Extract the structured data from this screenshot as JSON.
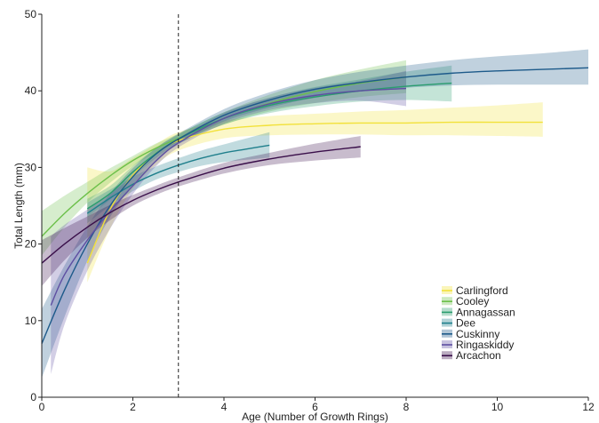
{
  "chart_data": {
    "type": "line",
    "xlabel": "Age (Number of Growth Rings)",
    "ylabel": "Total Length (mm)",
    "xlim": [
      0,
      12
    ],
    "ylim": [
      0,
      50
    ],
    "xticks": [
      "0",
      "2",
      "4",
      "6",
      "8",
      "10",
      "12"
    ],
    "yticks": [
      "0",
      "10",
      "20",
      "30",
      "40",
      "50"
    ],
    "reference_line": {
      "x": 3,
      "style": "dashed"
    },
    "legend_position": "bottom-right",
    "series": [
      {
        "name": "Carlingford",
        "color": "#f2e13a",
        "band_opacity": 0.28,
        "x": [
          1,
          1.5,
          2,
          2.5,
          3,
          4,
          5,
          6,
          7,
          8,
          9,
          10,
          11
        ],
        "y": [
          17.5,
          24.5,
          29.0,
          31.8,
          33.5,
          35.0,
          35.5,
          35.7,
          35.8,
          35.8,
          35.9,
          35.9,
          35.9
        ],
        "lower": [
          15.0,
          22.0,
          27.2,
          30.3,
          32.2,
          33.8,
          34.2,
          34.3,
          34.3,
          34.2,
          34.2,
          34.1,
          34.0
        ],
        "upper": [
          30.0,
          29.5,
          31.2,
          33.0,
          34.6,
          36.1,
          36.7,
          37.0,
          37.3,
          37.5,
          37.8,
          38.1,
          38.5
        ]
      },
      {
        "name": "Cooley",
        "color": "#6cc04a",
        "band_opacity": 0.28,
        "x": [
          0,
          0.5,
          1,
          1.5,
          2,
          2.5,
          3,
          4,
          5,
          6,
          7,
          8
        ],
        "y": [
          21.0,
          24.0,
          26.6,
          28.9,
          30.9,
          32.5,
          33.8,
          36.4,
          38.4,
          39.9,
          41.0,
          41.8
        ],
        "lower": [
          18.5,
          22.2,
          25.4,
          28.0,
          30.2,
          31.9,
          33.3,
          35.6,
          37.3,
          38.4,
          39.2,
          39.7
        ],
        "upper": [
          24.3,
          26.3,
          28.1,
          29.9,
          31.5,
          33.1,
          34.4,
          37.2,
          39.5,
          41.4,
          42.8,
          44.0
        ]
      },
      {
        "name": "Annagassan",
        "color": "#2a9d6e",
        "band_opacity": 0.28,
        "x": [
          1,
          1.5,
          2,
          2.5,
          3,
          4,
          5,
          6,
          7,
          8,
          9
        ],
        "y": [
          24.6,
          26.6,
          29.4,
          31.8,
          33.7,
          36.4,
          38.1,
          39.2,
          40.0,
          40.6,
          41.0
        ],
        "lower": [
          23.5,
          25.8,
          28.7,
          31.2,
          33.1,
          35.6,
          37.1,
          38.0,
          38.6,
          38.8,
          38.6
        ],
        "upper": [
          25.9,
          27.6,
          30.2,
          32.5,
          34.3,
          37.2,
          39.1,
          40.5,
          41.5,
          42.5,
          43.3
        ]
      },
      {
        "name": "Dee",
        "color": "#1f7f8c",
        "band_opacity": 0.28,
        "x": [
          1,
          1.5,
          2,
          2.5,
          3,
          3.5,
          4,
          4.5,
          5
        ],
        "y": [
          24.0,
          26.0,
          27.8,
          29.2,
          30.3,
          31.2,
          31.9,
          32.4,
          32.9
        ],
        "lower": [
          22.7,
          25.0,
          26.9,
          28.4,
          29.4,
          30.2,
          30.7,
          31.0,
          31.3
        ],
        "upper": [
          25.4,
          27.1,
          28.8,
          30.1,
          31.2,
          32.2,
          33.0,
          33.8,
          34.6
        ]
      },
      {
        "name": "Cuskinny",
        "color": "#1d5a8a",
        "band_opacity": 0.28,
        "x": [
          0,
          0.5,
          1,
          1.5,
          2,
          2.5,
          3,
          4,
          5,
          6,
          7,
          8,
          9,
          10,
          11,
          12
        ],
        "y": [
          7.0,
          14.0,
          20.0,
          25.0,
          28.8,
          31.7,
          33.7,
          36.8,
          38.8,
          40.2,
          41.1,
          41.8,
          42.3,
          42.6,
          42.8,
          43.0
        ],
        "lower": [
          2.5,
          10.5,
          17.8,
          23.5,
          27.7,
          30.9,
          33.0,
          36.0,
          37.8,
          39.1,
          39.9,
          40.4,
          40.7,
          40.8,
          40.8,
          40.8
        ],
        "upper": [
          11.5,
          17.2,
          22.3,
          26.6,
          29.9,
          32.5,
          34.4,
          37.6,
          39.8,
          41.4,
          42.5,
          43.3,
          44.0,
          44.5,
          44.9,
          45.4
        ]
      },
      {
        "name": "Ringaskiddy",
        "color": "#5e4fa2",
        "band_opacity": 0.28,
        "x": [
          0.2,
          0.5,
          1,
          1.5,
          2,
          2.5,
          3,
          4,
          5,
          6,
          7,
          8
        ],
        "y": [
          12.0,
          16.0,
          20.5,
          24.3,
          27.6,
          30.8,
          33.2,
          36.4,
          38.3,
          39.4,
          40.0,
          40.3
        ],
        "lower": [
          3.0,
          9.5,
          16.5,
          22.0,
          26.5,
          30.1,
          32.6,
          35.7,
          37.5,
          38.4,
          38.7,
          38.0
        ],
        "upper": [
          21.0,
          22.5,
          24.5,
          26.6,
          28.8,
          31.5,
          33.8,
          37.1,
          39.1,
          40.4,
          41.3,
          42.6
        ]
      },
      {
        "name": "Arcachon",
        "color": "#3a0f4a",
        "band_opacity": 0.28,
        "x": [
          0,
          0.5,
          1,
          1.5,
          2,
          2.5,
          3,
          4,
          5,
          6,
          7
        ],
        "y": [
          17.5,
          20.0,
          22.2,
          24.1,
          25.7,
          27.0,
          28.1,
          29.9,
          31.1,
          32.0,
          32.7
        ],
        "lower": [
          14.5,
          17.9,
          20.8,
          23.1,
          25.0,
          26.4,
          27.5,
          29.2,
          30.3,
          30.9,
          31.3
        ],
        "upper": [
          20.5,
          22.1,
          23.6,
          25.1,
          26.4,
          27.6,
          28.7,
          30.6,
          31.9,
          33.1,
          34.1
        ]
      }
    ]
  }
}
